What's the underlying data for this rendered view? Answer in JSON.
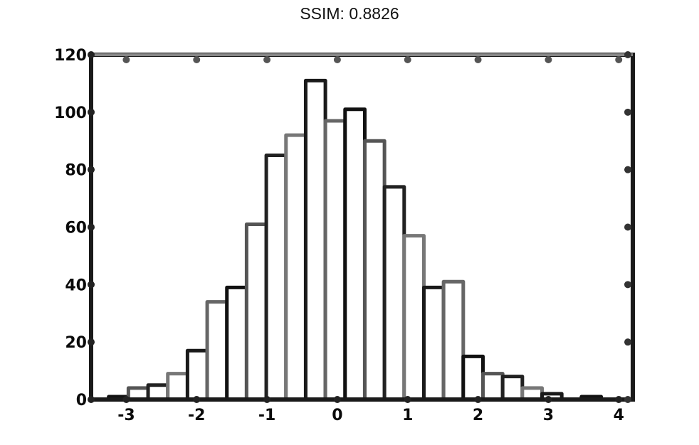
{
  "chart_data": {
    "type": "bar",
    "title": "SSIM: 0.8826",
    "xlabel": "",
    "ylabel": "",
    "xlim": [
      -3.5,
      4.2
    ],
    "ylim": [
      0,
      120
    ],
    "x_ticks": [
      -3,
      -2,
      -1,
      0,
      1,
      2,
      3,
      4
    ],
    "y_ticks": [
      0,
      20,
      40,
      60,
      80,
      100,
      120
    ],
    "bin_edges": [
      -3.25,
      -2.97,
      -2.69,
      -2.41,
      -2.13,
      -1.85,
      -1.57,
      -1.29,
      -1.01,
      -0.73,
      -0.45,
      -0.17,
      0.11,
      0.39,
      0.67,
      0.95,
      1.23,
      1.51,
      1.79,
      2.07,
      2.35,
      2.63,
      2.91,
      3.19,
      3.47,
      3.75,
      4.03
    ],
    "values": [
      1,
      4,
      5,
      9,
      17,
      34,
      39,
      61,
      85,
      92,
      111,
      97,
      101,
      90,
      74,
      57,
      39,
      41,
      15,
      9,
      8,
      4,
      2,
      0,
      1,
      0
    ],
    "grid": false,
    "legend": false
  }
}
